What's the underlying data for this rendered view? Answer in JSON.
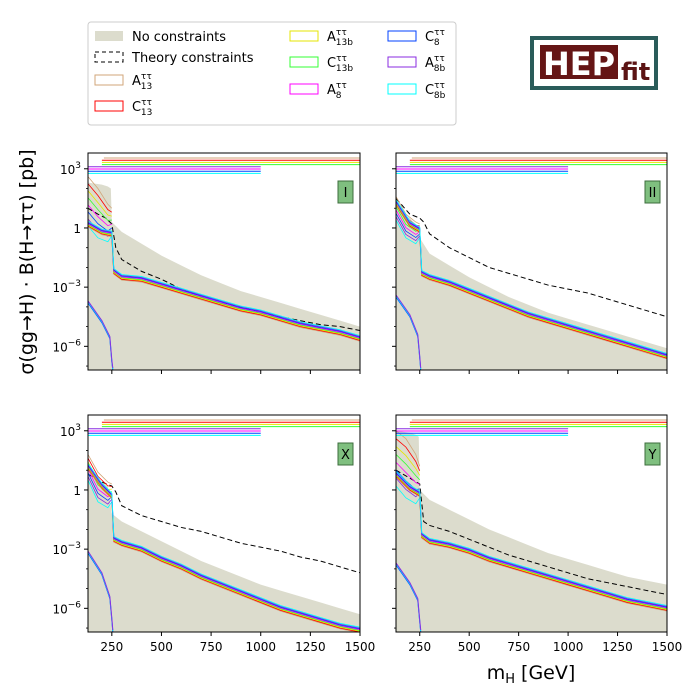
{
  "figure": {
    "ylabel": "σ(gg→H) · B(H→ττ) [pb]",
    "xlabel": "m_H [GeV]",
    "logo": {
      "main": "HEP",
      "sub": "fit",
      "frame_color": "#2a5c5a",
      "fill_color": "#651515"
    }
  },
  "legend": [
    {
      "label": "No constraints",
      "color": "#dcdccd",
      "style": "fill"
    },
    {
      "label": "Theory constraints",
      "color": "#000000",
      "style": "dashed"
    },
    {
      "label": "A",
      "sub": "13",
      "sup": "ττ",
      "color": "#d2a679",
      "style": "box"
    },
    {
      "label": "C",
      "sub": "13",
      "sup": "ττ",
      "color": "#ff0000",
      "style": "box"
    },
    {
      "label": "A",
      "sub": "13b",
      "sup": "ττ",
      "color": "#e6e600",
      "style": "box"
    },
    {
      "label": "C",
      "sub": "13b",
      "sup": "ττ",
      "color": "#33ff33",
      "style": "box"
    },
    {
      "label": "A",
      "sub": "8",
      "sup": "ττ",
      "color": "#ff00ff",
      "style": "box"
    },
    {
      "label": "C",
      "sub": "8",
      "sup": "ττ",
      "color": "#0040ff",
      "style": "box"
    },
    {
      "label": "A",
      "sub": "8b",
      "sup": "ττ",
      "color": "#8a2be2",
      "style": "box"
    },
    {
      "label": "C",
      "sub": "8b",
      "sup": "ττ",
      "color": "#00ffff",
      "style": "box"
    }
  ],
  "chart_data": [
    {
      "type": "area",
      "panel_label": "I",
      "xlim": [
        130,
        1500
      ],
      "y_log": true,
      "ylim_log10": [
        -7.2,
        3.8
      ],
      "xticks": [
        250,
        500,
        750,
        1000,
        1250,
        1500
      ],
      "xtick_labels": [],
      "yticks_log10": [
        3,
        0,
        -3,
        -6
      ],
      "ytick_labels": [
        "10^3",
        "1",
        "10^-3",
        "10^-6"
      ],
      "no_constraints_upper": {
        "x": [
          130,
          200,
          230,
          245,
          250,
          300,
          400,
          500,
          600,
          700,
          800,
          900,
          1000,
          1100,
          1200,
          1300,
          1400,
          1500
        ],
        "log10_y": [
          2.3,
          2.2,
          2.1,
          2.0,
          0.3,
          -0.2,
          -0.8,
          -1.4,
          -1.9,
          -2.4,
          -2.8,
          -3.2,
          -3.5,
          -3.8,
          -4.1,
          -4.4,
          -4.7,
          -5.0
        ]
      },
      "theory_upper": {
        "x": [
          130,
          180,
          220,
          250,
          270,
          300,
          400,
          500,
          600,
          700,
          800,
          900,
          1000,
          1100,
          1200,
          1300,
          1400,
          1500
        ],
        "log10_y": [
          1.0,
          0.7,
          0.5,
          0.2,
          -1.0,
          -1.6,
          -2.2,
          -2.6,
          -3.1,
          -3.5,
          -3.8,
          -4.0,
          -4.3,
          -4.5,
          -4.7,
          -4.9,
          -5.0,
          -5.2
        ]
      },
      "observed_main": {
        "x": [
          130,
          200,
          250,
          260,
          300,
          400,
          500,
          600,
          700,
          800,
          900,
          1000,
          1100,
          1200,
          1300,
          1400,
          1500
        ],
        "log10_y": [
          0.2,
          -0.2,
          -0.3,
          -2.2,
          -2.5,
          -2.6,
          -2.9,
          -3.2,
          -3.5,
          -3.8,
          -4.1,
          -4.3,
          -4.6,
          -4.9,
          -5.1,
          -5.3,
          -5.6
        ]
      },
      "observed_spread": {
        "x": [
          130,
          180,
          230,
          250
        ],
        "log10_y_high": [
          2.6,
          2.0,
          1.2,
          1.0
        ],
        "log10_y_low": [
          0.1,
          -0.5,
          -0.7,
          -0.4
        ]
      },
      "observed_low": {
        "x": [
          130,
          200,
          240,
          250,
          255
        ],
        "log10_y": [
          -3.8,
          -4.8,
          -5.6,
          -6.8,
          -7.2
        ]
      },
      "experiment_bars": [
        {
          "color": "#d2a679",
          "x": [
            210,
            1500
          ]
        },
        {
          "color": "#ff0000",
          "x": [
            200,
            1500
          ]
        },
        {
          "color": "#e6e600",
          "x": [
            200,
            1500
          ]
        },
        {
          "color": "#33ff33",
          "x": [
            200,
            1500
          ]
        },
        {
          "color": "#8a2be2",
          "x": [
            130,
            1000
          ]
        },
        {
          "color": "#ff00ff",
          "x": [
            130,
            1000
          ]
        },
        {
          "color": "#0040ff",
          "x": [
            130,
            1000
          ]
        },
        {
          "color": "#00ffff",
          "x": [
            130,
            1000
          ]
        }
      ]
    },
    {
      "type": "area",
      "panel_label": "II",
      "xlim": [
        130,
        1500
      ],
      "y_log": true,
      "ylim_log10": [
        -7.2,
        3.8
      ],
      "xticks": [
        250,
        500,
        750,
        1000,
        1250,
        1500
      ],
      "xtick_labels": [],
      "yticks_log10": [
        3,
        0,
        -3,
        -6
      ],
      "ytick_labels": [],
      "no_constraints_upper": {
        "x": [
          130,
          200,
          230,
          250,
          300,
          400,
          500,
          600,
          700,
          800,
          900,
          1000,
          1100,
          1200,
          1300,
          1400,
          1500
        ],
        "log10_y": [
          1.0,
          0.5,
          0.2,
          -0.5,
          -1.3,
          -1.9,
          -2.5,
          -3.0,
          -3.5,
          -3.9,
          -4.3,
          -4.6,
          -4.9,
          -5.2,
          -5.5,
          -5.8,
          -6.1
        ]
      },
      "theory_upper": {
        "x": [
          130,
          200,
          250,
          270,
          300,
          400,
          500,
          600,
          700,
          800,
          900,
          1000,
          1100,
          1200,
          1300,
          1400,
          1500
        ],
        "log10_y": [
          1.5,
          0.7,
          0.5,
          0.3,
          -0.3,
          -1.0,
          -1.5,
          -2.0,
          -2.3,
          -2.6,
          -2.9,
          -3.1,
          -3.3,
          -3.6,
          -3.9,
          -4.2,
          -4.5
        ]
      },
      "observed_main": {
        "x": [
          130,
          200,
          250,
          260,
          300,
          400,
          500,
          600,
          700,
          800,
          900,
          1000,
          1100,
          1200,
          1300,
          1400,
          1500
        ],
        "log10_y": [
          1.3,
          0.2,
          -0.1,
          -2.3,
          -2.5,
          -2.8,
          -3.2,
          -3.6,
          -4.0,
          -4.4,
          -4.7,
          -5.0,
          -5.3,
          -5.6,
          -5.9,
          -6.2,
          -6.5
        ]
      },
      "observed_spread": {
        "x": [
          130,
          180,
          230,
          250
        ],
        "log10_y_high": [
          1.6,
          0.7,
          0.3,
          0.2
        ],
        "log10_y_low": [
          0.4,
          -0.5,
          -0.8,
          -0.5
        ]
      },
      "observed_low": {
        "x": [
          130,
          200,
          240,
          250,
          255
        ],
        "log10_y": [
          -3.5,
          -4.5,
          -5.5,
          -6.6,
          -7.2
        ]
      },
      "experiment_bars": [
        {
          "color": "#d2a679",
          "x": [
            210,
            1500
          ]
        },
        {
          "color": "#ff0000",
          "x": [
            200,
            1500
          ]
        },
        {
          "color": "#e6e600",
          "x": [
            200,
            1500
          ]
        },
        {
          "color": "#33ff33",
          "x": [
            200,
            1500
          ]
        },
        {
          "color": "#8a2be2",
          "x": [
            130,
            1000
          ]
        },
        {
          "color": "#ff00ff",
          "x": [
            130,
            1000
          ]
        },
        {
          "color": "#0040ff",
          "x": [
            130,
            1000
          ]
        },
        {
          "color": "#00ffff",
          "x": [
            130,
            1000
          ]
        }
      ]
    },
    {
      "type": "area",
      "panel_label": "X",
      "xlim": [
        130,
        1500
      ],
      "y_log": true,
      "ylim_log10": [
        -7.2,
        3.8
      ],
      "xticks": [
        250,
        500,
        750,
        1000,
        1250,
        1500
      ],
      "xtick_labels": [
        "250",
        "500",
        "750",
        "1000",
        "1250",
        "1500"
      ],
      "yticks_log10": [
        3,
        0,
        -3,
        -6
      ],
      "ytick_labels": [
        "10^3",
        "1",
        "10^-3",
        "10^-6"
      ],
      "no_constraints_upper": {
        "x": [
          130,
          200,
          230,
          250,
          300,
          400,
          500,
          600,
          700,
          800,
          900,
          1000,
          1100,
          1200,
          1300,
          1400,
          1500
        ],
        "log10_y": [
          1.0,
          0.4,
          0.2,
          -1.2,
          -1.6,
          -2.1,
          -2.6,
          -3.1,
          -3.6,
          -4.0,
          -4.4,
          -4.8,
          -5.1,
          -5.4,
          -5.7,
          -6.0,
          -6.3
        ]
      },
      "theory_upper": {
        "x": [
          130,
          200,
          250,
          270,
          300,
          400,
          500,
          600,
          700,
          800,
          900,
          1000,
          1100,
          1200,
          1300,
          1400,
          1500
        ],
        "log10_y": [
          0.8,
          0.4,
          0.2,
          -0.1,
          -0.8,
          -1.3,
          -1.6,
          -1.9,
          -2.1,
          -2.4,
          -2.7,
          -2.9,
          -3.1,
          -3.4,
          -3.6,
          -3.9,
          -4.2
        ]
      },
      "observed_main": {
        "x": [
          130,
          200,
          250,
          260,
          300,
          400,
          500,
          600,
          700,
          800,
          900,
          1000,
          1100,
          1200,
          1300,
          1400,
          1500
        ],
        "log10_y": [
          1.2,
          0.2,
          -0.3,
          -2.5,
          -2.7,
          -3.0,
          -3.5,
          -3.9,
          -4.4,
          -4.8,
          -5.2,
          -5.6,
          -6.0,
          -6.3,
          -6.6,
          -6.9,
          -7.1
        ]
      },
      "observed_spread": {
        "x": [
          130,
          180,
          230,
          250
        ],
        "log10_y_high": [
          1.8,
          0.9,
          0.4,
          0.3
        ],
        "log10_y_low": [
          0.5,
          -0.6,
          -0.9,
          -0.6
        ]
      },
      "observed_low": {
        "x": [
          130,
          200,
          240,
          250,
          255
        ],
        "log10_y": [
          -3.2,
          -4.3,
          -5.5,
          -6.6,
          -7.2
        ]
      },
      "experiment_bars": [
        {
          "color": "#d2a679",
          "x": [
            210,
            1500
          ]
        },
        {
          "color": "#ff0000",
          "x": [
            200,
            1500
          ]
        },
        {
          "color": "#e6e600",
          "x": [
            200,
            1500
          ]
        },
        {
          "color": "#33ff33",
          "x": [
            200,
            1500
          ]
        },
        {
          "color": "#8a2be2",
          "x": [
            130,
            1000
          ]
        },
        {
          "color": "#ff00ff",
          "x": [
            130,
            1000
          ]
        },
        {
          "color": "#0040ff",
          "x": [
            130,
            1000
          ]
        },
        {
          "color": "#00ffff",
          "x": [
            130,
            1000
          ]
        }
      ]
    },
    {
      "type": "area",
      "panel_label": "Y",
      "xlim": [
        130,
        1500
      ],
      "y_log": true,
      "ylim_log10": [
        -7.2,
        3.8
      ],
      "xticks": [
        250,
        500,
        750,
        1000,
        1250,
        1500
      ],
      "xtick_labels": [
        "250",
        "500",
        "750",
        "1000",
        "1250",
        "1500"
      ],
      "yticks_log10": [
        3,
        0,
        -3,
        -6
      ],
      "ytick_labels": [],
      "no_constraints_upper": {
        "x": [
          130,
          200,
          230,
          245,
          250,
          300,
          400,
          500,
          600,
          700,
          800,
          900,
          1000,
          1100,
          1200,
          1300,
          1400,
          1500
        ],
        "log10_y": [
          3.0,
          2.9,
          2.8,
          2.7,
          0.0,
          -0.5,
          -1.0,
          -1.5,
          -2.0,
          -2.4,
          -2.8,
          -3.2,
          -3.5,
          -3.8,
          -4.1,
          -4.4,
          -4.6,
          -4.8
        ]
      },
      "theory_upper": {
        "x": [
          130,
          200,
          250,
          270,
          300,
          400,
          500,
          600,
          700,
          800,
          900,
          1000,
          1100,
          1200,
          1300,
          1400,
          1500
        ],
        "log10_y": [
          1.0,
          0.6,
          0.3,
          -1.6,
          -1.8,
          -2.1,
          -2.5,
          -2.9,
          -3.3,
          -3.6,
          -3.9,
          -4.2,
          -4.5,
          -4.7,
          -4.9,
          -5.1,
          -5.3
        ]
      },
      "observed_main": {
        "x": [
          130,
          200,
          250,
          260,
          300,
          400,
          500,
          600,
          700,
          800,
          900,
          1000,
          1100,
          1200,
          1300,
          1400,
          1500
        ],
        "log10_y": [
          0.8,
          0.1,
          -0.2,
          -2.3,
          -2.6,
          -2.8,
          -3.1,
          -3.5,
          -3.8,
          -4.1,
          -4.4,
          -4.7,
          -5.0,
          -5.3,
          -5.6,
          -5.8,
          -6.0
        ]
      },
      "observed_spread": {
        "x": [
          130,
          180,
          230,
          250
        ],
        "log10_y_high": [
          3.0,
          2.6,
          1.8,
          1.2
        ],
        "log10_y_low": [
          0.2,
          -0.4,
          -0.7,
          -0.4
        ]
      },
      "observed_low": {
        "x": [
          130,
          200,
          240,
          250,
          255
        ],
        "log10_y": [
          -3.8,
          -4.8,
          -5.6,
          -6.7,
          -7.2
        ]
      },
      "experiment_bars": [
        {
          "color": "#d2a679",
          "x": [
            210,
            1500
          ]
        },
        {
          "color": "#ff0000",
          "x": [
            200,
            1500
          ]
        },
        {
          "color": "#e6e600",
          "x": [
            200,
            1500
          ]
        },
        {
          "color": "#33ff33",
          "x": [
            200,
            1500
          ]
        },
        {
          "color": "#8a2be2",
          "x": [
            130,
            1000
          ]
        },
        {
          "color": "#ff00ff",
          "x": [
            130,
            1000
          ]
        },
        {
          "color": "#0040ff",
          "x": [
            130,
            1000
          ]
        },
        {
          "color": "#00ffff",
          "x": [
            130,
            1000
          ]
        }
      ]
    }
  ]
}
